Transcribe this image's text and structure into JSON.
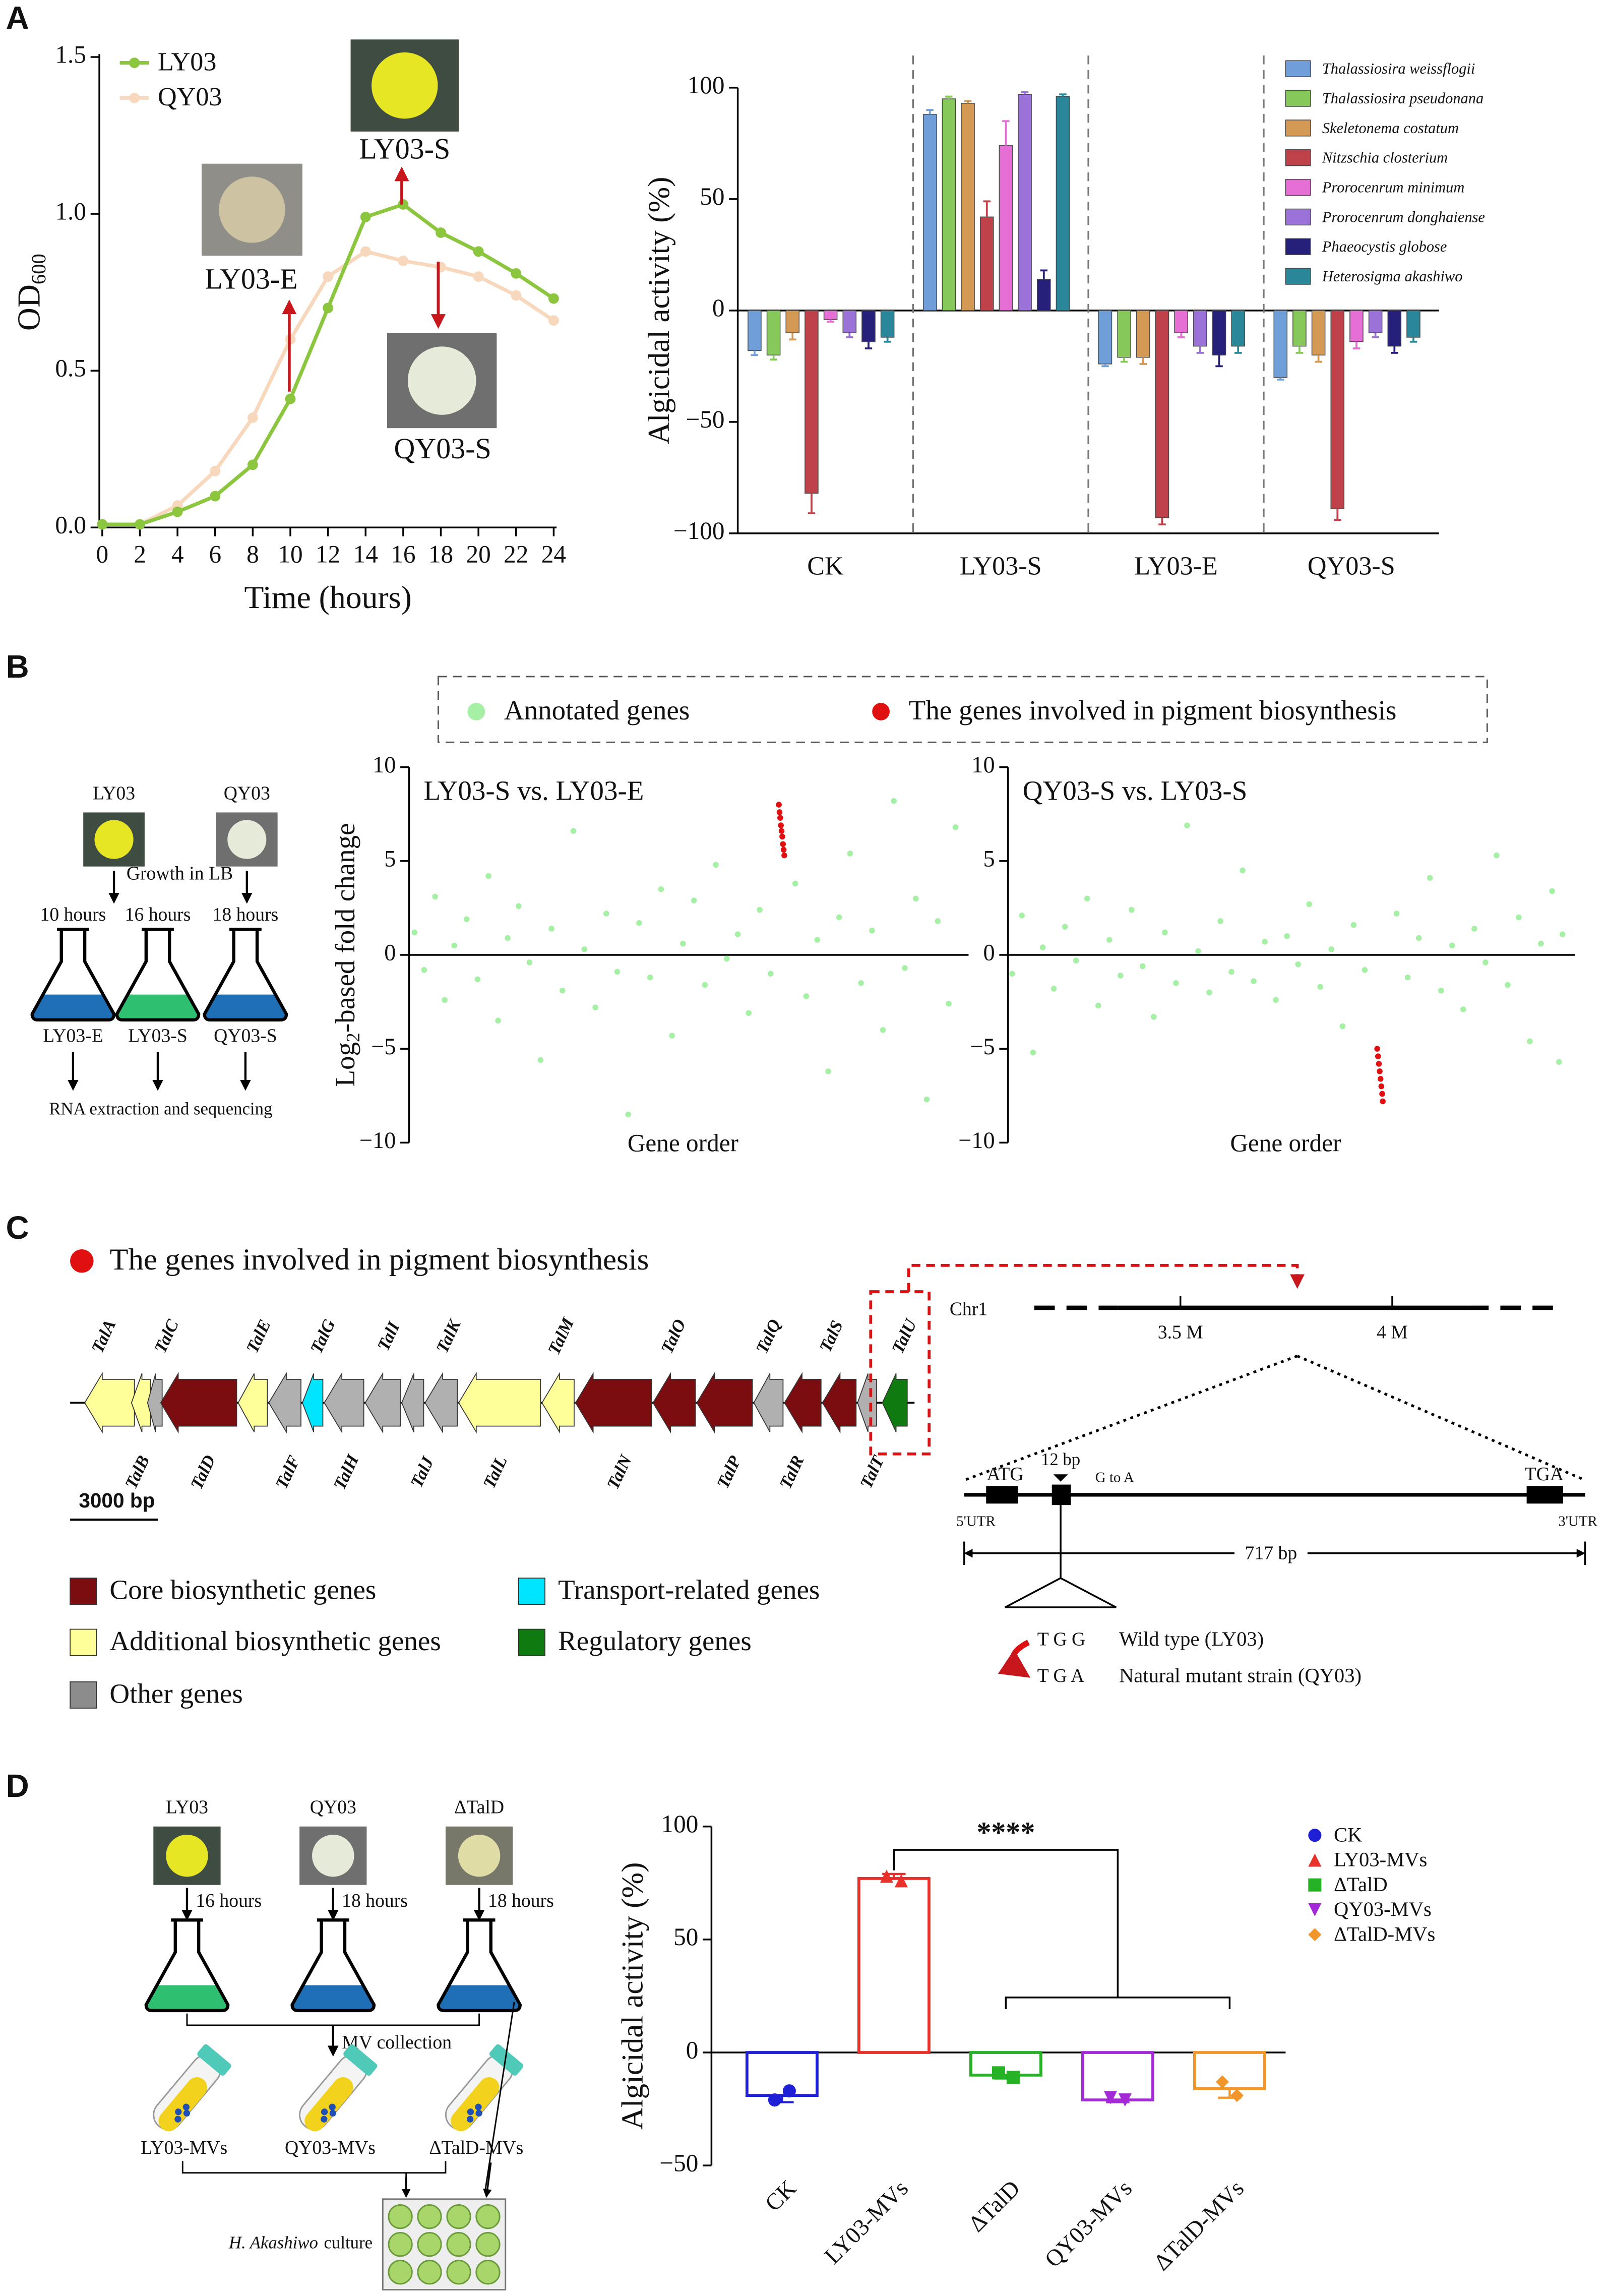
{
  "panel_labels": [
    "A",
    "B",
    "C",
    "D"
  ],
  "chart_data": [
    {
      "type": "line",
      "xlabel": "Time (hours)",
      "ylabel": {
        "text": "OD",
        "sub": "600"
      },
      "x": [
        0,
        2,
        4,
        6,
        8,
        10,
        12,
        14,
        16,
        18,
        20,
        22,
        24
      ],
      "series": [
        {
          "name": "LY03",
          "color": "#8cc63f",
          "values": [
            0.01,
            0.01,
            0.05,
            0.1,
            0.2,
            0.41,
            0.7,
            0.99,
            1.03,
            0.94,
            0.88,
            0.81,
            0.73
          ]
        },
        {
          "name": "QY03",
          "color": "#f8d8bd",
          "values": [
            0.01,
            0.01,
            0.07,
            0.18,
            0.35,
            0.6,
            0.8,
            0.88,
            0.85,
            0.83,
            0.8,
            0.74,
            0.66
          ]
        }
      ],
      "xlim": [
        0,
        24
      ],
      "xticks": [
        0,
        2,
        4,
        6,
        8,
        10,
        12,
        14,
        16,
        18,
        20,
        22,
        24
      ],
      "ylim": [
        0,
        1.5
      ],
      "yticks": [
        {
          "value": 0,
          "label": "0.0"
        },
        {
          "value": 0.5,
          "label": "0.5"
        },
        {
          "value": 1,
          "label": "1.0"
        },
        {
          "value": 1.5,
          "label": "1.5"
        }
      ],
      "annotations": [
        "LY03-S",
        "LY03-E",
        "QY03-S"
      ],
      "legend": "upper left"
    },
    {
      "type": "bar",
      "ylabel": "Algicidal activity (%)",
      "categories": [
        "CK",
        "LY03-S",
        "LY03-E",
        "QY03-S"
      ],
      "series": [
        {
          "name": "Thalassiosira weissflogii",
          "color": "#6f9ed8",
          "values": [
            -18,
            88,
            -24,
            -30
          ],
          "errors": [
            2,
            2,
            1,
            1
          ]
        },
        {
          "name": "Thalassiosira pseudonana",
          "color": "#86c95a",
          "values": [
            -20,
            95,
            -21,
            -16
          ],
          "errors": [
            2,
            1,
            2,
            3
          ]
        },
        {
          "name": "Skeletonema costatum",
          "color": "#d49a55",
          "values": [
            -10,
            93,
            -21,
            -20
          ],
          "errors": [
            3,
            1,
            3,
            3
          ]
        },
        {
          "name": "Nitzschia closterium",
          "color": "#bf414a",
          "values": [
            -82,
            42,
            -93,
            -89
          ],
          "errors": [
            9,
            7,
            3,
            5
          ]
        },
        {
          "name": "Prorocenrum minimum",
          "color": "#e66fd6",
          "values": [
            -4,
            74,
            -10,
            -14
          ],
          "errors": [
            1,
            11,
            2,
            3
          ]
        },
        {
          "name": "Prorocenrum donghaiense",
          "color": "#9a72d8",
          "values": [
            -10,
            97,
            -16,
            -10
          ],
          "errors": [
            2,
            1,
            3,
            2
          ]
        },
        {
          "name": "Phaeocystis globose",
          "color": "#26207a",
          "values": [
            -14,
            14,
            -20,
            -16
          ],
          "errors": [
            3,
            4,
            5,
            3
          ]
        },
        {
          "name": "Heterosigma akashiwo",
          "color": "#2a8799",
          "values": [
            -12,
            96,
            -16,
            -12
          ],
          "errors": [
            2,
            1,
            3,
            2
          ]
        }
      ],
      "ylim": [
        -100,
        100
      ],
      "yticks": [
        {
          "value": -100,
          "label": "−100"
        },
        {
          "value": -50,
          "label": "−50"
        },
        0,
        50,
        100
      ],
      "legend": "upper right"
    },
    {
      "type": "scatter",
      "title": "LY03-S vs. LY03-E",
      "xlabel": "Gene order",
      "ylabel": {
        "text": "Log",
        "sub": "2",
        "rest": "-based fold change"
      },
      "xlim": [
        0,
        4000
      ],
      "ylim": [
        -10,
        10
      ],
      "yticks": [
        {
          "value": -10,
          "label": "−10"
        },
        {
          "value": -5,
          "label": "−5"
        },
        0,
        5,
        10
      ],
      "series": [
        {
          "name": "Annotated genes",
          "color": "#a6f0a6",
          "x": [
            40,
            110,
            190,
            260,
            330,
            420,
            500,
            580,
            650,
            720,
            800,
            880,
            960,
            1040,
            1120,
            1200,
            1280,
            1360,
            1440,
            1520,
            1600,
            1680,
            1760,
            1840,
            1920,
            2000,
            2080,
            2160,
            2240,
            2320,
            2400,
            2480,
            2560,
            2640,
            2820,
            2900,
            2980,
            3060,
            3140,
            3220,
            3300,
            3380,
            3460,
            3540,
            3620,
            3700,
            3780,
            3860,
            3940,
            3990
          ],
          "values": [
            1.2,
            -0.8,
            3.1,
            -2.4,
            0.5,
            1.9,
            -1.3,
            4.2,
            -3.5,
            0.9,
            2.6,
            -0.4,
            -5.6,
            1.4,
            -1.9,
            6.6,
            0.3,
            -2.8,
            2.2,
            -0.9,
            -8.5,
            1.7,
            -1.2,
            3.5,
            -4.3,
            0.6,
            2.9,
            -1.6,
            4.8,
            -0.2,
            1.1,
            -3.1,
            2.4,
            -1.0,
            3.8,
            -2.2,
            0.8,
            -6.2,
            2.0,
            5.4,
            -1.5,
            1.3,
            -4.0,
            8.2,
            -0.7,
            3.0,
            -7.7,
            1.8,
            -2.6,
            6.8
          ]
        },
        {
          "name": "The genes involved in pigment biosynthesis",
          "color": "#e01010",
          "x": [
            2700,
            2705,
            2710,
            2715,
            2720,
            2725,
            2730,
            2735,
            2740
          ],
          "values": [
            8.0,
            7.6,
            7.3,
            6.9,
            6.6,
            6.3,
            5.9,
            5.6,
            5.3
          ]
        }
      ]
    },
    {
      "type": "scatter",
      "title": "QY03-S vs. LY03-S",
      "xlabel": "Gene order",
      "xlim": [
        0,
        4000
      ],
      "ylim": [
        -10,
        10
      ],
      "yticks": [
        {
          "value": -10,
          "label": "−10"
        },
        {
          "value": -5,
          "label": "−5"
        },
        0,
        5,
        10
      ],
      "series": [
        {
          "color": "#a6f0a6",
          "x": [
            30,
            100,
            180,
            250,
            330,
            410,
            490,
            570,
            650,
            730,
            810,
            890,
            970,
            1050,
            1130,
            1210,
            1290,
            1370,
            1450,
            1530,
            1610,
            1690,
            1770,
            1850,
            1930,
            2010,
            2090,
            2170,
            2250,
            2330,
            2410,
            2490,
            2570,
            2800,
            2880,
            2960,
            3040,
            3120,
            3200,
            3280,
            3360,
            3440,
            3520,
            3600,
            3680,
            3760,
            3840,
            3920,
            3970,
            3995
          ],
          "values": [
            -1.0,
            2.1,
            -5.2,
            0.4,
            -1.8,
            1.5,
            -0.3,
            3.0,
            -2.7,
            0.8,
            -1.1,
            2.4,
            -0.6,
            -3.3,
            1.2,
            -1.5,
            6.9,
            0.2,
            -2.0,
            1.8,
            -0.9,
            4.5,
            -1.4,
            0.7,
            -2.4,
            1.0,
            -0.5,
            2.7,
            -1.7,
            0.3,
            -3.8,
            1.6,
            -0.8,
            2.2,
            -1.2,
            0.9,
            4.1,
            -1.9,
            0.5,
            -2.9,
            1.4,
            -0.4,
            5.3,
            -1.6,
            2.0,
            -4.6,
            0.6,
            3.4,
            -5.7,
            1.1
          ]
        },
        {
          "color": "#e01010",
          "x": [
            2660,
            2666,
            2672,
            2678,
            2684,
            2690,
            2696,
            2700
          ],
          "values": [
            -5.0,
            -5.4,
            -5.8,
            -6.2,
            -6.6,
            -7.0,
            -7.4,
            -7.8
          ]
        }
      ]
    },
    {
      "type": "bar",
      "ylabel": "Algicidal activity (%)",
      "categories": [
        "CK",
        "LY03-MVs",
        "ΔTalD",
        "QY03-MVs",
        "ΔTalD-MVs"
      ],
      "values": [
        -19,
        77,
        -10,
        -21,
        -16
      ],
      "errors": [
        3,
        2,
        1.5,
        1,
        4
      ],
      "points": [
        [
          -21,
          -17
        ],
        [
          78,
          76
        ],
        [
          -9,
          -11
        ],
        [
          -20,
          -21
        ],
        [
          -13,
          -19
        ]
      ],
      "colors": [
        "#1f1fd6",
        "#e8312a",
        "#25b325",
        "#a32ad6",
        "#f0962a"
      ],
      "markers": [
        "circle",
        "triangle-up",
        "square",
        "triangle-down",
        "diamond"
      ],
      "ylim": [
        -50,
        100
      ],
      "yticks": [
        {
          "value": -50,
          "label": "−50"
        },
        0,
        50,
        100
      ],
      "significance": "****",
      "legend": "upper right"
    }
  ],
  "panel_b_flow": {
    "strains": [
      "LY03",
      "QY03"
    ],
    "step": "Growth in LB",
    "times": [
      "10 hours",
      "16 hours",
      "18 hours"
    ],
    "samples": [
      "LY03-E",
      "LY03-S",
      "QY03-S"
    ],
    "final": "RNA extraction and sequencing"
  },
  "gene_cluster": {
    "title": "The genes involved in pigment biosynthesis",
    "scale": "3000 bp",
    "genes": [
      {
        "name": "TalA",
        "color": "#ffff99"
      },
      {
        "name": "TalB",
        "color": "#ffff99"
      },
      {
        "name": "TalC",
        "color": "#b0b0b0"
      },
      {
        "name": "TalD",
        "color": "#7b0d10"
      },
      {
        "name": "TalE",
        "color": "#ffff99"
      },
      {
        "name": "TalF",
        "color": "#b0b0b0"
      },
      {
        "name": "TalG",
        "color": "#00e5ff"
      },
      {
        "name": "TalH",
        "color": "#b0b0b0"
      },
      {
        "name": "TalI",
        "color": "#b0b0b0"
      },
      {
        "name": "TalJ",
        "color": "#b0b0b0"
      },
      {
        "name": "TalK",
        "color": "#b0b0b0"
      },
      {
        "name": "TalL",
        "color": "#ffff99"
      },
      {
        "name": "TalM",
        "color": "#ffff99"
      },
      {
        "name": "TalN",
        "color": "#7b0d10"
      },
      {
        "name": "TalO",
        "color": "#7b0d10"
      },
      {
        "name": "TalP",
        "color": "#7b0d10"
      },
      {
        "name": "TalQ",
        "color": "#b0b0b0"
      },
      {
        "name": "TalR",
        "color": "#7b0d10"
      },
      {
        "name": "TalS",
        "color": "#7b0d10"
      },
      {
        "name": "TalT",
        "color": "#b0b0b0"
      },
      {
        "name": "TalU",
        "color": "#0f7a0f"
      }
    ],
    "legend": [
      {
        "label": "Core biosynthetic genes",
        "color": "#7b0d10"
      },
      {
        "label": "Additional biosynthetic genes",
        "color": "#ffff99"
      },
      {
        "label": "Other genes",
        "color": "#8c8c8c"
      },
      {
        "label": "Transport-related genes",
        "color": "#00e5ff"
      },
      {
        "label": "Regulatory genes",
        "color": "#0f7a0f"
      }
    ]
  },
  "locus": {
    "chromosome": "Chr1",
    "ticks": [
      "3.5 M",
      "4 M"
    ],
    "start": "ATG",
    "insert": "12 bp",
    "change": "G to A",
    "stop": "TGA",
    "utr5": "5'UTR",
    "utr3": "3'UTR",
    "length": "717 bp",
    "alleles": [
      {
        "codon": "T G G",
        "label": "Wild type (LY03)"
      },
      {
        "codon": "T G A",
        "label": "Natural mutant strain (QY03)"
      }
    ]
  },
  "panel_d_flow": {
    "strains": [
      "LY03",
      "QY03",
      "ΔTalD"
    ],
    "times": [
      "16 hours",
      "18 hours",
      "18 hours"
    ],
    "step": "MV collection",
    "vesicles": [
      "LY03-MVs",
      "QY03-MVs",
      "ΔTalD-MVs"
    ],
    "culture": {
      "species": "H. Akashiwo",
      "word": "culture"
    }
  }
}
